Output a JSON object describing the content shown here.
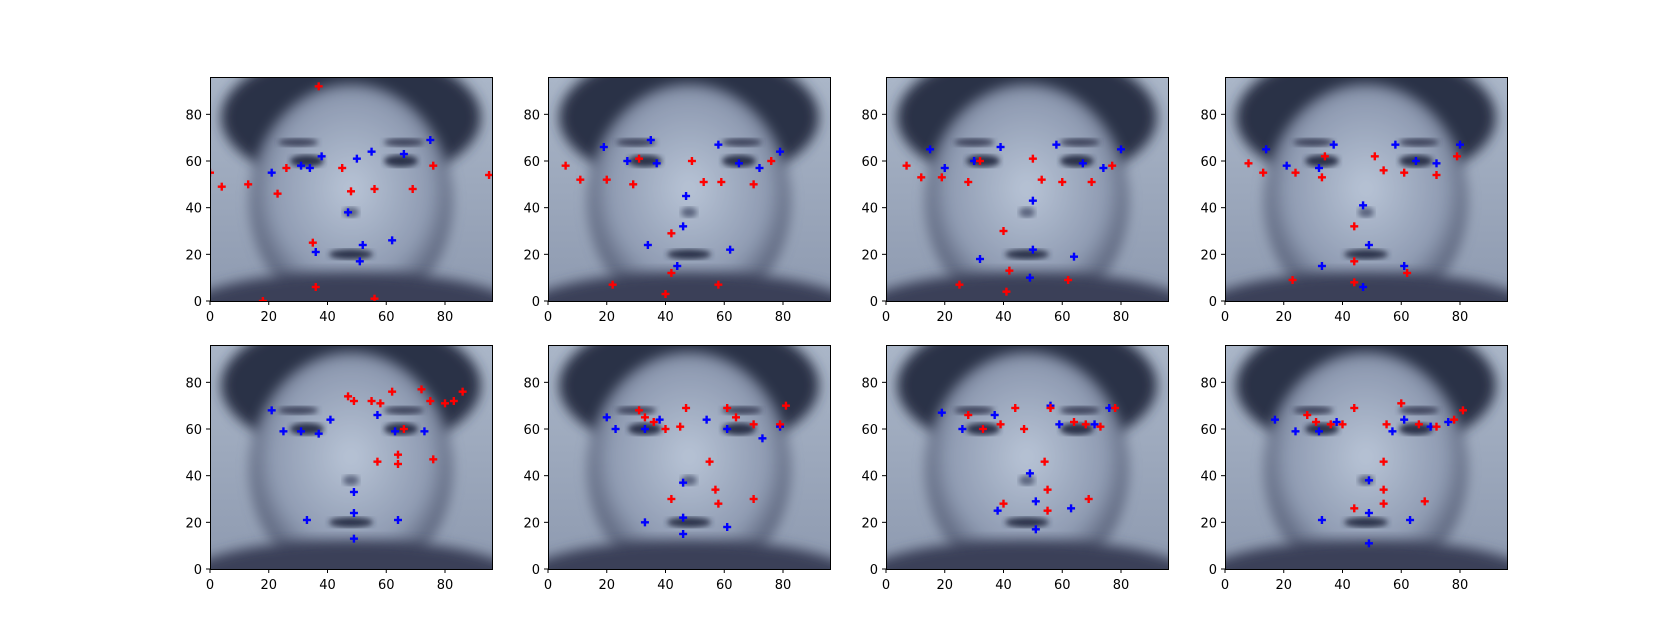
{
  "colors": {
    "predicted": "#ff0000",
    "actual": "#0000ff",
    "face_dark": "#1a1f33",
    "face_light": "#c9d3e0"
  },
  "chart_data": [
    {
      "type": "scatter",
      "image": "grayscale face photo, bone colormap",
      "xlim": [
        0,
        96
      ],
      "ylim": [
        0,
        96
      ],
      "xticks": [
        0,
        20,
        40,
        60,
        80
      ],
      "yticks": [
        0,
        20,
        40,
        60,
        80
      ],
      "series": [
        {
          "color": "blue",
          "points": [
            [
              21,
              55
            ],
            [
              38,
              62
            ],
            [
              50,
              61
            ],
            [
              55,
              64
            ],
            [
              66,
              63
            ],
            [
              75,
              69
            ],
            [
              31,
              58
            ],
            [
              34,
              57
            ],
            [
              47,
              38
            ],
            [
              52,
              24
            ],
            [
              51,
              17
            ],
            [
              62,
              26
            ],
            [
              36,
              21
            ]
          ]
        },
        {
          "color": "red",
          "points": [
            [
              4,
              49
            ],
            [
              13,
              50
            ],
            [
              23,
              46
            ],
            [
              26,
              57
            ],
            [
              45,
              57
            ],
            [
              48,
              47
            ],
            [
              56,
              48
            ],
            [
              69,
              48
            ],
            [
              76,
              58
            ],
            [
              36,
              6
            ],
            [
              18,
              0
            ],
            [
              56,
              1
            ],
            [
              35,
              25
            ],
            [
              0,
              55
            ],
            [
              95,
              54
            ],
            [
              37,
              92
            ]
          ]
        }
      ]
    },
    {
      "type": "scatter",
      "image": "grayscale face photo, bone colormap",
      "xlim": [
        0,
        96
      ],
      "ylim": [
        0,
        96
      ],
      "xticks": [
        0,
        20,
        40,
        60,
        80
      ],
      "yticks": [
        0,
        20,
        40,
        60,
        80
      ],
      "series": [
        {
          "color": "blue",
          "points": [
            [
              19,
              66
            ],
            [
              27,
              60
            ],
            [
              35,
              69
            ],
            [
              37,
              59
            ],
            [
              58,
              67
            ],
            [
              65,
              59
            ],
            [
              72,
              57
            ],
            [
              79,
              64
            ],
            [
              47,
              45
            ],
            [
              46,
              32
            ],
            [
              34,
              24
            ],
            [
              44,
              15
            ],
            [
              62,
              22
            ]
          ]
        },
        {
          "color": "red",
          "points": [
            [
              6,
              58
            ],
            [
              11,
              52
            ],
            [
              20,
              52
            ],
            [
              29,
              50
            ],
            [
              31,
              61
            ],
            [
              49,
              60
            ],
            [
              53,
              51
            ],
            [
              59,
              51
            ],
            [
              70,
              50
            ],
            [
              76,
              60
            ],
            [
              42,
              29
            ],
            [
              40,
              3
            ],
            [
              22,
              7
            ],
            [
              58,
              7
            ],
            [
              42,
              12
            ]
          ]
        }
      ]
    },
    {
      "type": "scatter",
      "image": "grayscale face photo, bone colormap",
      "xlim": [
        0,
        96
      ],
      "ylim": [
        0,
        96
      ],
      "xticks": [
        0,
        20,
        40,
        60,
        80
      ],
      "yticks": [
        0,
        20,
        40,
        60,
        80
      ],
      "series": [
        {
          "color": "blue",
          "points": [
            [
              15,
              65
            ],
            [
              20,
              57
            ],
            [
              30,
              60
            ],
            [
              39,
              66
            ],
            [
              58,
              67
            ],
            [
              67,
              59
            ],
            [
              74,
              57
            ],
            [
              80,
              65
            ],
            [
              50,
              43
            ],
            [
              50,
              22
            ],
            [
              32,
              18
            ],
            [
              64,
              19
            ],
            [
              49,
              10
            ]
          ]
        },
        {
          "color": "red",
          "points": [
            [
              7,
              58
            ],
            [
              12,
              53
            ],
            [
              19,
              53
            ],
            [
              28,
              51
            ],
            [
              32,
              60
            ],
            [
              50,
              61
            ],
            [
              53,
              52
            ],
            [
              60,
              51
            ],
            [
              70,
              51
            ],
            [
              77,
              58
            ],
            [
              40,
              30
            ],
            [
              42,
              13
            ],
            [
              25,
              7
            ],
            [
              62,
              9
            ],
            [
              41,
              4
            ]
          ]
        }
      ]
    },
    {
      "type": "scatter",
      "image": "grayscale face photo, bone colormap",
      "xlim": [
        0,
        96
      ],
      "ylim": [
        0,
        96
      ],
      "xticks": [
        0,
        20,
        40,
        60,
        80
      ],
      "yticks": [
        0,
        20,
        40,
        60,
        80
      ],
      "series": [
        {
          "color": "blue",
          "points": [
            [
              14,
              65
            ],
            [
              21,
              58
            ],
            [
              32,
              57
            ],
            [
              37,
              67
            ],
            [
              58,
              67
            ],
            [
              65,
              60
            ],
            [
              72,
              59
            ],
            [
              80,
              67
            ],
            [
              47,
              41
            ],
            [
              49,
              24
            ],
            [
              33,
              15
            ],
            [
              61,
              15
            ],
            [
              47,
              6
            ]
          ]
        },
        {
          "color": "red",
          "points": [
            [
              8,
              59
            ],
            [
              13,
              55
            ],
            [
              24,
              55
            ],
            [
              33,
              53
            ],
            [
              34,
              62
            ],
            [
              51,
              62
            ],
            [
              54,
              56
            ],
            [
              61,
              55
            ],
            [
              72,
              54
            ],
            [
              79,
              62
            ],
            [
              44,
              32
            ],
            [
              44,
              17
            ],
            [
              23,
              9
            ],
            [
              62,
              12
            ],
            [
              44,
              8
            ]
          ]
        }
      ]
    },
    {
      "type": "scatter",
      "image": "grayscale face photo, bone colormap",
      "xlim": [
        0,
        96
      ],
      "ylim": [
        0,
        96
      ],
      "xticks": [
        0,
        20,
        40,
        60,
        80
      ],
      "yticks": [
        0,
        20,
        40,
        60,
        80
      ],
      "series": [
        {
          "color": "blue",
          "points": [
            [
              21,
              68
            ],
            [
              25,
              59
            ],
            [
              31,
              59
            ],
            [
              37,
              58
            ],
            [
              41,
              64
            ],
            [
              57,
              66
            ],
            [
              63,
              59
            ],
            [
              73,
              59
            ],
            [
              49,
              33
            ],
            [
              49,
              24
            ],
            [
              33,
              21
            ],
            [
              49,
              13
            ],
            [
              64,
              21
            ]
          ]
        },
        {
          "color": "red",
          "points": [
            [
              47,
              74
            ],
            [
              49,
              72
            ],
            [
              55,
              72
            ],
            [
              58,
              71
            ],
            [
              62,
              76
            ],
            [
              66,
              60
            ],
            [
              72,
              77
            ],
            [
              75,
              72
            ],
            [
              80,
              71
            ],
            [
              83,
              72
            ],
            [
              86,
              76
            ],
            [
              57,
              46
            ],
            [
              64,
              49
            ],
            [
              64,
              45
            ],
            [
              76,
              47
            ]
          ]
        }
      ]
    },
    {
      "type": "scatter",
      "image": "grayscale face photo, bone colormap",
      "xlim": [
        0,
        96
      ],
      "ylim": [
        0,
        96
      ],
      "xticks": [
        0,
        20,
        40,
        60,
        80
      ],
      "yticks": [
        0,
        20,
        40,
        60,
        80
      ],
      "series": [
        {
          "color": "blue",
          "points": [
            [
              20,
              65
            ],
            [
              23,
              60
            ],
            [
              33,
              60
            ],
            [
              38,
              64
            ],
            [
              54,
              64
            ],
            [
              61,
              60
            ],
            [
              73,
              56
            ],
            [
              79,
              61
            ],
            [
              46,
              37
            ],
            [
              46,
              22
            ],
            [
              33,
              20
            ],
            [
              46,
              15
            ],
            [
              61,
              18
            ]
          ]
        },
        {
          "color": "red",
          "points": [
            [
              31,
              68
            ],
            [
              33,
              65
            ],
            [
              36,
              63
            ],
            [
              40,
              60
            ],
            [
              45,
              61
            ],
            [
              47,
              69
            ],
            [
              61,
              69
            ],
            [
              64,
              65
            ],
            [
              70,
              62
            ],
            [
              79,
              62
            ],
            [
              81,
              70
            ],
            [
              55,
              46
            ],
            [
              57,
              34
            ],
            [
              58,
              28
            ],
            [
              42,
              30
            ],
            [
              70,
              30
            ]
          ]
        }
      ]
    },
    {
      "type": "scatter",
      "image": "grayscale face photo, bone colormap",
      "xlim": [
        0,
        96
      ],
      "ylim": [
        0,
        96
      ],
      "xticks": [
        0,
        20,
        40,
        60,
        80
      ],
      "yticks": [
        0,
        20,
        40,
        60,
        80
      ],
      "series": [
        {
          "color": "blue",
          "points": [
            [
              19,
              67
            ],
            [
              26,
              60
            ],
            [
              33,
              60
            ],
            [
              37,
              66
            ],
            [
              56,
              70
            ],
            [
              59,
              62
            ],
            [
              71,
              62
            ],
            [
              76,
              69
            ],
            [
              49,
              41
            ],
            [
              51,
              29
            ],
            [
              38,
              25
            ],
            [
              51,
              17
            ],
            [
              63,
              26
            ]
          ]
        },
        {
          "color": "red",
          "points": [
            [
              28,
              66
            ],
            [
              33,
              60
            ],
            [
              39,
              62
            ],
            [
              44,
              69
            ],
            [
              56,
              69
            ],
            [
              64,
              63
            ],
            [
              68,
              62
            ],
            [
              73,
              61
            ],
            [
              78,
              69
            ],
            [
              47,
              60
            ],
            [
              54,
              46
            ],
            [
              55,
              34
            ],
            [
              40,
              28
            ],
            [
              55,
              25
            ],
            [
              69,
              30
            ]
          ]
        }
      ]
    },
    {
      "type": "scatter",
      "image": "grayscale face photo, bone colormap",
      "xlim": [
        0,
        96
      ],
      "ylim": [
        0,
        96
      ],
      "xticks": [
        0,
        20,
        40,
        60,
        80
      ],
      "yticks": [
        0,
        20,
        40,
        60,
        80
      ],
      "series": [
        {
          "color": "blue",
          "points": [
            [
              17,
              64
            ],
            [
              24,
              59
            ],
            [
              32,
              59
            ],
            [
              38,
              63
            ],
            [
              57,
              59
            ],
            [
              61,
              64
            ],
            [
              70,
              61
            ],
            [
              76,
              63
            ],
            [
              49,
              38
            ],
            [
              49,
              24
            ],
            [
              33,
              21
            ],
            [
              49,
              11
            ],
            [
              63,
              21
            ]
          ]
        },
        {
          "color": "red",
          "points": [
            [
              28,
              66
            ],
            [
              31,
              63
            ],
            [
              36,
              62
            ],
            [
              40,
              62
            ],
            [
              44,
              69
            ],
            [
              55,
              62
            ],
            [
              60,
              71
            ],
            [
              66,
              62
            ],
            [
              72,
              61
            ],
            [
              78,
              64
            ],
            [
              81,
              68
            ],
            [
              54,
              46
            ],
            [
              54,
              34
            ],
            [
              54,
              28
            ],
            [
              44,
              26
            ],
            [
              68,
              29
            ]
          ]
        }
      ]
    }
  ]
}
